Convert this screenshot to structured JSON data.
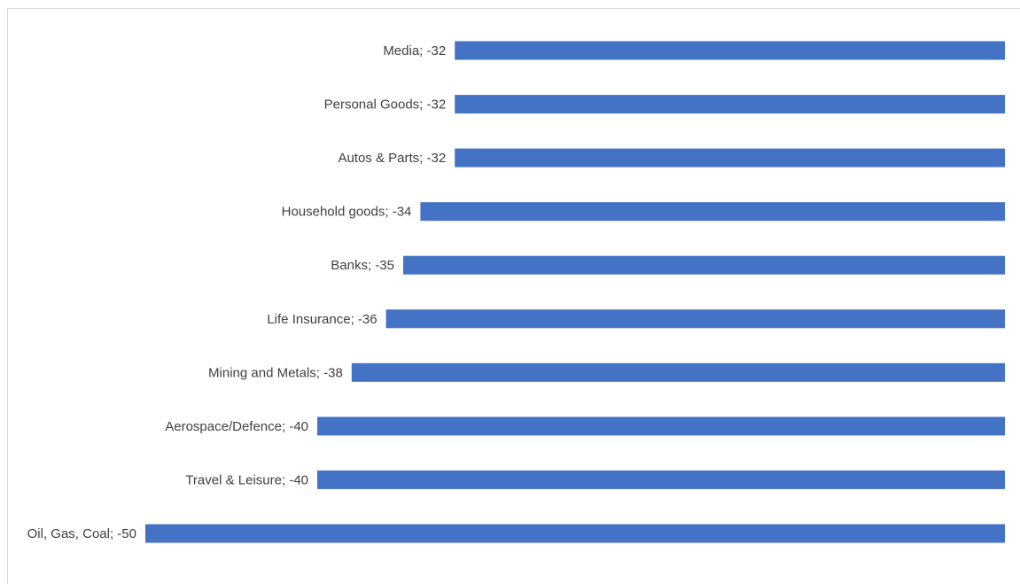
{
  "chart_data": {
    "type": "bar",
    "orientation": "horizontal",
    "title": "",
    "xlabel": "",
    "ylabel": "",
    "categories": [
      "Media",
      "Personal Goods",
      "Autos & Parts",
      "Household goods",
      "Banks",
      "Life Insurance",
      "Mining and Metals",
      "Aerospace/Defence",
      "Travel & Leisure",
      "Oil, Gas, Coal"
    ],
    "values": [
      -32,
      -32,
      -32,
      -34,
      -35,
      -36,
      -38,
      -40,
      -40,
      -50
    ],
    "labels": [
      "Media; -32",
      "Personal Goods; -32",
      "Autos & Parts; -32",
      "Household goods; -34",
      "Banks; -35",
      "Life Insurance; -36",
      "Mining and Metals; -38",
      "Aerospace/Defence; -40",
      "Travel & Leisure; -40",
      "Oil, Gas, Coal; -50"
    ],
    "xlim": [
      -50,
      0
    ],
    "grid": false,
    "legend": "none",
    "bar_color": "#4472C4",
    "label_color": "#404040"
  }
}
